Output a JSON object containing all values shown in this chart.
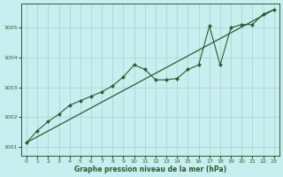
{
  "title": "Graphe pression niveau de la mer (hPa)",
  "background_color": "#c8eef0",
  "grid_color": "#b0cccc",
  "line_color": "#2d5a2d",
  "marker_color": "#2d5a2d",
  "xlim": [
    -0.5,
    23.5
  ],
  "ylim": [
    1000.7,
    1005.8
  ],
  "yticks": [
    1001,
    1002,
    1003,
    1004,
    1005
  ],
  "xticks": [
    0,
    1,
    2,
    3,
    4,
    5,
    6,
    7,
    8,
    9,
    10,
    11,
    12,
    13,
    14,
    15,
    16,
    17,
    18,
    19,
    20,
    21,
    22,
    23
  ],
  "trend_x": [
    0,
    23
  ],
  "trend_y": [
    1001.15,
    1005.6
  ],
  "series_x": [
    0,
    1,
    2,
    3,
    4,
    5,
    6,
    7,
    8,
    9,
    10,
    11,
    12,
    13,
    14,
    15,
    16,
    17,
    18,
    19,
    20,
    21,
    22,
    23
  ],
  "series_y": [
    1001.15,
    1001.55,
    1001.85,
    1002.1,
    1002.4,
    1002.55,
    1002.7,
    1002.85,
    1003.05,
    1003.35,
    1003.75,
    1003.6,
    1003.25,
    1003.25,
    1003.3,
    1003.6,
    1003.75,
    1005.05,
    1003.75,
    1005.0,
    1005.1,
    1005.1,
    1005.45,
    1005.6
  ]
}
